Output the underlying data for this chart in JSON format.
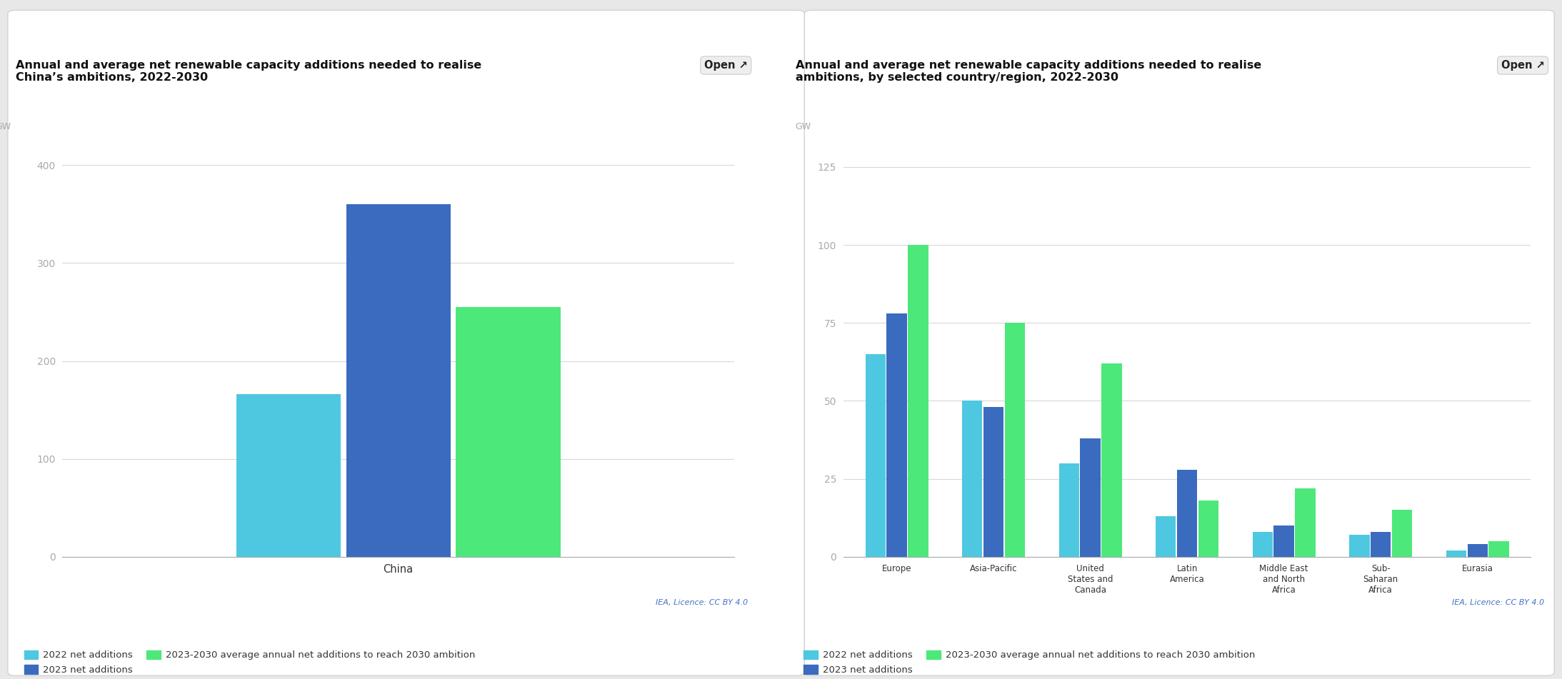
{
  "chart1": {
    "title": "Annual and average net renewable capacity additions needed to realise\nChina’s ambitions, 2022-2030",
    "ylabel": "GW",
    "categories": [
      "China"
    ],
    "bar1_values": [
      166
    ],
    "bar2_values": [
      360
    ],
    "bar3_values": [
      255
    ],
    "ylim": [
      0,
      430
    ],
    "yticks": [
      0,
      100,
      200,
      300,
      400
    ],
    "bar_width": 0.18
  },
  "chart2": {
    "title": "Annual and average net renewable capacity additions needed to realise\nambitions, by selected country/region, 2022-2030",
    "ylabel": "GW",
    "categories": [
      "Europe",
      "Asia-Pacific",
      "United\nStates and\nCanada",
      "Latin\nAmerica",
      "Middle East\nand North\nAfrica",
      "Sub-\nSaharan\nAfrica",
      "Eurasia"
    ],
    "bar1_values": [
      65,
      50,
      30,
      13,
      8,
      7,
      2
    ],
    "bar2_values": [
      78,
      48,
      38,
      28,
      10,
      8,
      4
    ],
    "bar3_values": [
      100,
      75,
      62,
      18,
      22,
      15,
      5
    ],
    "ylim": [
      0,
      135
    ],
    "yticks": [
      0,
      25,
      50,
      75,
      100,
      125
    ],
    "bar_width": 0.22
  },
  "colors": {
    "bar1": "#4dc8e0",
    "bar2": "#3a6bbf",
    "bar3": "#4de87a"
  },
  "legend": [
    "2022 net additions",
    "2023 net additions",
    "2023-2030 average annual net additions to reach 2030 ambition"
  ],
  "open_label": "Open",
  "license_text": "IEA, Licence: CC BY 4.0",
  "outer_background": "#e8e8e8",
  "card_background": "#ffffff",
  "grid_color": "#d8d8d8",
  "tick_color": "#aaaaaa",
  "title_fontsize": 11.5,
  "axis_label_fontsize": 9,
  "tick_fontsize": 10,
  "legend_fontsize": 9.5
}
